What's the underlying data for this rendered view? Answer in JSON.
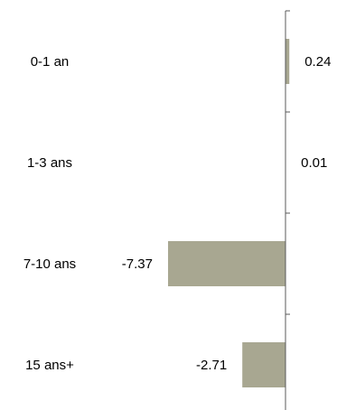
{
  "chart_data": {
    "type": "bar",
    "orientation": "horizontal",
    "categories": [
      "0-1 an",
      "1-3 ans",
      "7-10 ans",
      "15 ans+"
    ],
    "values": [
      0.24,
      0.01,
      -7.37,
      -2.71
    ],
    "value_labels": [
      "0.24",
      "0.01",
      "-7.37",
      "-2.71"
    ],
    "title": "",
    "xlabel": "",
    "ylabel": "",
    "xlim": [
      -9.4,
      0.3
    ],
    "grid": false,
    "legend": "none",
    "bar_color": "#a8a791",
    "axis_color": "#595959"
  }
}
